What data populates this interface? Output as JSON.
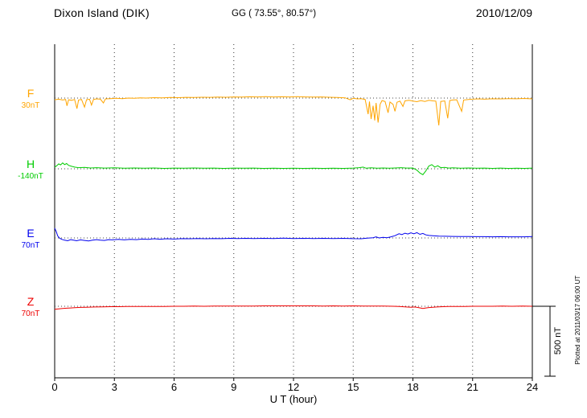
{
  "header": {
    "station": "Dixon Island (DIK)",
    "coords": "GG ( 73.55°,  80.57°)",
    "date": "2010/12/09"
  },
  "footer": {
    "plotted_note": "Plotted at 2011/03/17 06:00 UT"
  },
  "chart_data": {
    "type": "line",
    "title": "Dixon Island (DIK) magnetogram",
    "xlabel": "U T (hour)",
    "ylabel": "",
    "x_range": [
      0,
      24
    ],
    "x_ticks": [
      0,
      3,
      6,
      9,
      12,
      15,
      18,
      21,
      24
    ],
    "grid": "vertical-dotted",
    "scale_bar": {
      "label": "500 nT",
      "nT": 500
    },
    "series": [
      {
        "name": "F",
        "baseline_label": "30nT",
        "color": "#FFA500",
        "points": [
          [
            0,
            -12
          ],
          [
            0.2,
            -8
          ],
          [
            0.4,
            -14
          ],
          [
            0.55,
            -10
          ],
          [
            0.62,
            -55
          ],
          [
            0.7,
            -12
          ],
          [
            0.85,
            -16
          ],
          [
            1,
            -10
          ],
          [
            1.12,
            -75
          ],
          [
            1.2,
            -14
          ],
          [
            1.35,
            -10
          ],
          [
            1.5,
            -65
          ],
          [
            1.6,
            -12
          ],
          [
            1.75,
            -8
          ],
          [
            1.85,
            -50
          ],
          [
            1.95,
            -10
          ],
          [
            2.1,
            -6
          ],
          [
            2.3,
            -8
          ],
          [
            2.45,
            -35
          ],
          [
            2.55,
            -6
          ],
          [
            2.8,
            -4
          ],
          [
            3.1,
            -2
          ],
          [
            3.4,
            -4
          ],
          [
            3.7,
            0
          ],
          [
            4,
            -2
          ],
          [
            4.3,
            2
          ],
          [
            4.6,
            0
          ],
          [
            5,
            3
          ],
          [
            5.4,
            2
          ],
          [
            5.8,
            4
          ],
          [
            6.2,
            3
          ],
          [
            6.6,
            5
          ],
          [
            7,
            4
          ],
          [
            7.4,
            6
          ],
          [
            7.8,
            5
          ],
          [
            8.2,
            7
          ],
          [
            8.6,
            6
          ],
          [
            9,
            8
          ],
          [
            9.4,
            7
          ],
          [
            9.8,
            9
          ],
          [
            10.2,
            8
          ],
          [
            10.6,
            10
          ],
          [
            11,
            8
          ],
          [
            11.4,
            9
          ],
          [
            11.8,
            8
          ],
          [
            12.2,
            10
          ],
          [
            12.6,
            8
          ],
          [
            13,
            7
          ],
          [
            13.4,
            8
          ],
          [
            13.8,
            6
          ],
          [
            14.2,
            4
          ],
          [
            14.6,
            2
          ],
          [
            14.85,
            -12
          ],
          [
            15,
            -2
          ],
          [
            15.2,
            -6
          ],
          [
            15.4,
            -4
          ],
          [
            15.6,
            -10
          ],
          [
            15.75,
            -115
          ],
          [
            15.82,
            -25
          ],
          [
            15.9,
            -150
          ],
          [
            16,
            -55
          ],
          [
            16.08,
            -160
          ],
          [
            16.15,
            -35
          ],
          [
            16.25,
            -175
          ],
          [
            16.35,
            -45
          ],
          [
            16.45,
            -18
          ],
          [
            16.6,
            -25
          ],
          [
            16.75,
            -105
          ],
          [
            16.85,
            -28
          ],
          [
            17,
            -45
          ],
          [
            17.1,
            -95
          ],
          [
            17.2,
            -30
          ],
          [
            17.35,
            -22
          ],
          [
            17.5,
            -60
          ],
          [
            17.6,
            -20
          ],
          [
            17.8,
            -16
          ],
          [
            18,
            -22
          ],
          [
            18.2,
            -26
          ],
          [
            18.4,
            -18
          ],
          [
            18.6,
            -24
          ],
          [
            18.8,
            -16
          ],
          [
            19,
            -20
          ],
          [
            19.15,
            -22
          ],
          [
            19.3,
            -195
          ],
          [
            19.4,
            -24
          ],
          [
            19.6,
            -20
          ],
          [
            19.75,
            -145
          ],
          [
            19.85,
            -18
          ],
          [
            20,
            -14
          ],
          [
            20.2,
            -12
          ],
          [
            20.45,
            -95
          ],
          [
            20.55,
            -14
          ],
          [
            20.8,
            -10
          ],
          [
            21,
            -8
          ],
          [
            21.3,
            -6
          ],
          [
            21.6,
            -8
          ],
          [
            22,
            -5
          ],
          [
            22.4,
            -6
          ],
          [
            22.8,
            -4
          ],
          [
            23.2,
            -5
          ],
          [
            23.6,
            -3
          ],
          [
            24,
            -6
          ]
        ]
      },
      {
        "name": "H",
        "baseline_label": "-140nT",
        "color": "#00CC00",
        "points": [
          [
            0,
            12
          ],
          [
            0.1,
            22
          ],
          [
            0.2,
            35
          ],
          [
            0.3,
            28
          ],
          [
            0.4,
            42
          ],
          [
            0.5,
            30
          ],
          [
            0.6,
            38
          ],
          [
            0.7,
            25
          ],
          [
            0.85,
            18
          ],
          [
            1,
            12
          ],
          [
            1.2,
            8
          ],
          [
            1.5,
            10
          ],
          [
            1.8,
            6
          ],
          [
            2.1,
            8
          ],
          [
            2.5,
            5
          ],
          [
            3,
            7
          ],
          [
            3.5,
            4
          ],
          [
            4,
            6
          ],
          [
            4.5,
            4
          ],
          [
            5,
            6
          ],
          [
            5.5,
            3
          ],
          [
            6,
            5
          ],
          [
            6.5,
            4
          ],
          [
            7,
            6
          ],
          [
            7.5,
            4
          ],
          [
            8,
            5
          ],
          [
            8.5,
            3
          ],
          [
            9,
            5
          ],
          [
            9.5,
            4
          ],
          [
            10,
            5
          ],
          [
            10.5,
            3
          ],
          [
            11,
            4
          ],
          [
            11.5,
            3
          ],
          [
            12,
            4
          ],
          [
            12.5,
            3
          ],
          [
            13,
            4
          ],
          [
            13.5,
            3
          ],
          [
            14,
            4
          ],
          [
            14.5,
            3
          ],
          [
            15,
            5
          ],
          [
            15.3,
            8
          ],
          [
            15.5,
            12
          ],
          [
            15.65,
            4
          ],
          [
            15.9,
            7
          ],
          [
            16.2,
            4
          ],
          [
            16.5,
            6
          ],
          [
            16.8,
            4
          ],
          [
            17.1,
            6
          ],
          [
            17.4,
            8
          ],
          [
            17.7,
            5
          ],
          [
            18,
            6
          ],
          [
            18.2,
            -10
          ],
          [
            18.35,
            -30
          ],
          [
            18.5,
            -42
          ],
          [
            18.65,
            -15
          ],
          [
            18.8,
            20
          ],
          [
            18.95,
            30
          ],
          [
            19.1,
            12
          ],
          [
            19.25,
            22
          ],
          [
            19.4,
            8
          ],
          [
            19.6,
            10
          ],
          [
            19.8,
            5
          ],
          [
            20,
            7
          ],
          [
            20.4,
            4
          ],
          [
            20.8,
            6
          ],
          [
            21.2,
            4
          ],
          [
            21.6,
            5
          ],
          [
            22,
            3
          ],
          [
            22.4,
            5
          ],
          [
            22.8,
            3
          ],
          [
            23.2,
            4
          ],
          [
            23.6,
            3
          ],
          [
            24,
            5
          ]
        ]
      },
      {
        "name": "E",
        "baseline_label": "70nT",
        "color": "#0000EE",
        "points": [
          [
            0,
            70
          ],
          [
            0.08,
            45
          ],
          [
            0.15,
            15
          ],
          [
            0.25,
            -2
          ],
          [
            0.35,
            -10
          ],
          [
            0.5,
            -16
          ],
          [
            0.65,
            -20
          ],
          [
            0.8,
            -12
          ],
          [
            0.95,
            -16
          ],
          [
            1.1,
            -20
          ],
          [
            1.3,
            -14
          ],
          [
            1.5,
            -18
          ],
          [
            1.7,
            -22
          ],
          [
            1.9,
            -16
          ],
          [
            2.1,
            -12
          ],
          [
            2.3,
            -16
          ],
          [
            2.5,
            -18
          ],
          [
            2.7,
            -12
          ],
          [
            2.9,
            -14
          ],
          [
            3.2,
            -10
          ],
          [
            3.5,
            -14
          ],
          [
            3.8,
            -10
          ],
          [
            4.1,
            -12
          ],
          [
            4.4,
            -8
          ],
          [
            4.7,
            -10
          ],
          [
            5,
            -6
          ],
          [
            5.3,
            -9
          ],
          [
            5.6,
            -6
          ],
          [
            6,
            -8
          ],
          [
            6.4,
            -5
          ],
          [
            6.8,
            -6
          ],
          [
            7.2,
            -4
          ],
          [
            7.6,
            -6
          ],
          [
            8,
            -4
          ],
          [
            8.4,
            -5
          ],
          [
            8.8,
            -3
          ],
          [
            9.2,
            -4
          ],
          [
            9.6,
            -3
          ],
          [
            10,
            -4
          ],
          [
            10.5,
            -3
          ],
          [
            11,
            -4
          ],
          [
            11.5,
            -2
          ],
          [
            12,
            -4
          ],
          [
            12.5,
            -3
          ],
          [
            13,
            -4
          ],
          [
            13.5,
            -3
          ],
          [
            14,
            -4
          ],
          [
            14.5,
            -3
          ],
          [
            15,
            -5
          ],
          [
            15.4,
            -6
          ],
          [
            15.7,
            -2
          ],
          [
            16,
            2
          ],
          [
            16.15,
            8
          ],
          [
            16.3,
            0
          ],
          [
            16.5,
            4
          ],
          [
            16.7,
            2
          ],
          [
            16.9,
            8
          ],
          [
            17.1,
            16
          ],
          [
            17.3,
            30
          ],
          [
            17.45,
            24
          ],
          [
            17.6,
            34
          ],
          [
            17.75,
            28
          ],
          [
            17.9,
            36
          ],
          [
            18.05,
            30
          ],
          [
            18.2,
            38
          ],
          [
            18.35,
            26
          ],
          [
            18.5,
            32
          ],
          [
            18.65,
            22
          ],
          [
            18.8,
            18
          ],
          [
            19,
            16
          ],
          [
            19.3,
            13
          ],
          [
            19.6,
            12
          ],
          [
            20,
            11
          ],
          [
            20.4,
            10
          ],
          [
            20.8,
            10
          ],
          [
            21.2,
            9
          ],
          [
            21.6,
            9
          ],
          [
            22,
            8
          ],
          [
            22.4,
            9
          ],
          [
            22.8,
            8
          ],
          [
            23.2,
            8
          ],
          [
            23.6,
            8
          ],
          [
            24,
            10
          ]
        ]
      },
      {
        "name": "Z",
        "baseline_label": "70nT",
        "color": "#EE0000",
        "points": [
          [
            0,
            -22
          ],
          [
            0.2,
            -19
          ],
          [
            0.4,
            -16
          ],
          [
            0.6,
            -14
          ],
          [
            0.8,
            -12
          ],
          [
            1,
            -10
          ],
          [
            1.3,
            -8
          ],
          [
            1.6,
            -7
          ],
          [
            2,
            -5
          ],
          [
            2.4,
            -4
          ],
          [
            2.8,
            -3
          ],
          [
            3.2,
            -3
          ],
          [
            3.6,
            -2
          ],
          [
            4,
            -2
          ],
          [
            4.5,
            -1
          ],
          [
            5,
            -2
          ],
          [
            5.5,
            -1
          ],
          [
            6,
            0
          ],
          [
            6.5,
            0
          ],
          [
            7,
            1
          ],
          [
            7.5,
            0
          ],
          [
            8,
            1
          ],
          [
            8.5,
            1
          ],
          [
            9,
            2
          ],
          [
            9.5,
            2
          ],
          [
            10,
            2
          ],
          [
            10.5,
            3
          ],
          [
            11,
            3
          ],
          [
            11.5,
            3
          ],
          [
            12,
            3
          ],
          [
            12.5,
            3
          ],
          [
            13,
            3
          ],
          [
            13.5,
            2
          ],
          [
            14,
            3
          ],
          [
            14.5,
            2
          ],
          [
            15,
            3
          ],
          [
            15.5,
            1
          ],
          [
            16,
            2
          ],
          [
            16.5,
            1
          ],
          [
            17,
            0
          ],
          [
            17.3,
            -2
          ],
          [
            17.6,
            -4
          ],
          [
            17.9,
            -7
          ],
          [
            18.1,
            -5
          ],
          [
            18.3,
            -10
          ],
          [
            18.5,
            -16
          ],
          [
            18.65,
            -12
          ],
          [
            18.8,
            -9
          ],
          [
            19,
            -7
          ],
          [
            19.2,
            -5
          ],
          [
            19.5,
            -3
          ],
          [
            19.8,
            -2
          ],
          [
            20.2,
            -1
          ],
          [
            20.6,
            -1
          ],
          [
            21,
            0
          ],
          [
            21.5,
            0
          ],
          [
            22,
            0
          ],
          [
            22.5,
            1
          ],
          [
            23,
            0
          ],
          [
            23.5,
            1
          ],
          [
            24,
            0
          ]
        ]
      }
    ]
  }
}
